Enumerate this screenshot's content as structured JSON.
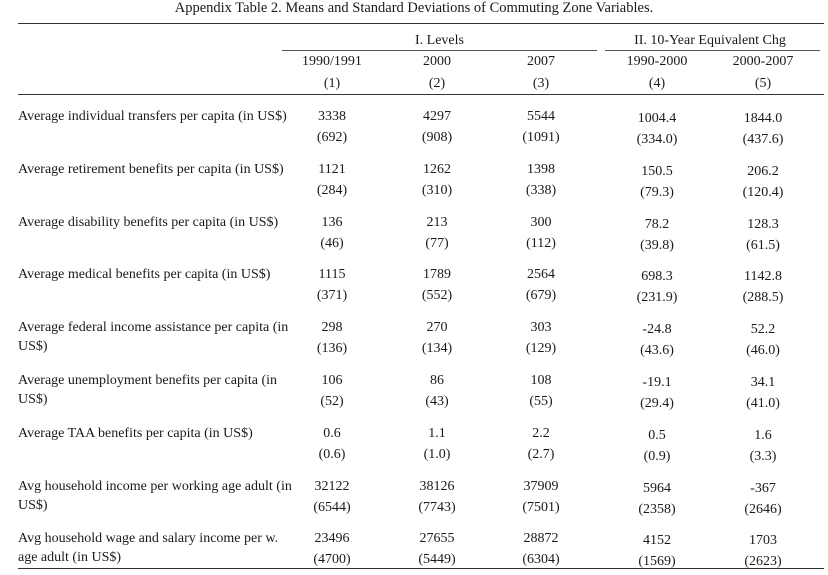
{
  "title": "Appendix Table 2. Means and Standard Deviations of Commuting Zone Variables.",
  "groups": {
    "levels": "I. Levels",
    "changes": "II. 10-Year Equivalent Chg"
  },
  "columns": [
    {
      "label": "1990/1991",
      "num": "(1)"
    },
    {
      "label": "2000",
      "num": "(2)"
    },
    {
      "label": "2007",
      "num": "(3)"
    },
    {
      "label": "1990-2000",
      "num": "(4)"
    },
    {
      "label": "2000-2007",
      "num": "(5)"
    }
  ],
  "rows": [
    {
      "label": "Average individual transfers per capita (in US$)",
      "means": [
        "3338",
        "4297",
        "5544",
        "1004.4",
        "1844.0"
      ],
      "sds": [
        "(692)",
        "(908)",
        "(1091)",
        "(334.0)",
        "(437.6)"
      ]
    },
    {
      "label": "Average retirement benefits per capita (in US$)",
      "means": [
        "1121",
        "1262",
        "1398",
        "150.5",
        "206.2"
      ],
      "sds": [
        "(284)",
        "(310)",
        "(338)",
        "(79.3)",
        "(120.4)"
      ]
    },
    {
      "label": "Average disability benefits per capita (in US$)",
      "means": [
        "136",
        "213",
        "300",
        "78.2",
        "128.3"
      ],
      "sds": [
        "(46)",
        "(77)",
        "(112)",
        "(39.8)",
        "(61.5)"
      ]
    },
    {
      "label": "Average medical benefits per capita (in US$)",
      "means": [
        "1115",
        "1789",
        "2564",
        "698.3",
        "1142.8"
      ],
      "sds": [
        "(371)",
        "(552)",
        "(679)",
        "(231.9)",
        "(288.5)"
      ]
    },
    {
      "label": "Average federal income assistance per capita (in US$)",
      "means": [
        "298",
        "270",
        "303",
        "-24.8",
        "52.2"
      ],
      "sds": [
        "(136)",
        "(134)",
        "(129)",
        "(43.6)",
        "(46.0)"
      ]
    },
    {
      "label": "Average unemployment benefits per capita (in US$)",
      "means": [
        "106",
        "86",
        "108",
        "-19.1",
        "34.1"
      ],
      "sds": [
        "(52)",
        "(43)",
        "(55)",
        "(29.4)",
        "(41.0)"
      ]
    },
    {
      "label": "Average TAA benefits per capita (in US$)",
      "means": [
        "0.6",
        "1.1",
        "2.2",
        "0.5",
        "1.6"
      ],
      "sds": [
        "(0.6)",
        "(1.0)",
        "(2.7)",
        "(0.9)",
        "(3.3)"
      ]
    },
    {
      "label": "Avg household income per working age adult (in US$)",
      "means": [
        "32122",
        "38126",
        "37909",
        "5964",
        "-367"
      ],
      "sds": [
        "(6544)",
        "(7743)",
        "(7501)",
        "(2358)",
        "(2646)"
      ]
    },
    {
      "label": "Avg household wage and salary income per w. age adult (in US$)",
      "means": [
        "23496",
        "27655",
        "28872",
        "4152",
        "1703"
      ],
      "sds": [
        "(4700)",
        "(5449)",
        "(6304)",
        "(1569)",
        "(2623)"
      ]
    }
  ]
}
